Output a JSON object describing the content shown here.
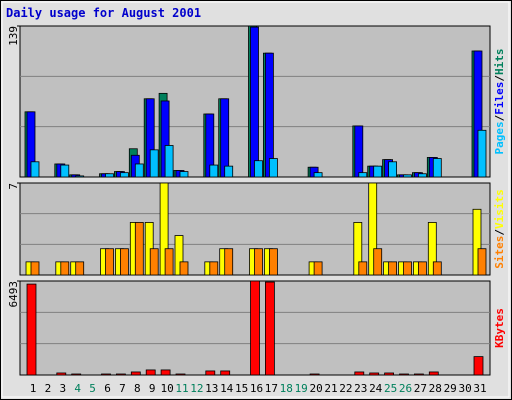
{
  "chart_data": [
    {
      "type": "bar",
      "title": "Daily usage for August 2001",
      "ylim": [
        0,
        139
      ],
      "yticks": [
        139
      ],
      "legend_separator": "/",
      "series": [
        {
          "name": "Pages",
          "color": "#00c0ff",
          "values": [
            14,
            0,
            11,
            1,
            0,
            3,
            4,
            12,
            25,
            29,
            5,
            0,
            11,
            10,
            0,
            15,
            17,
            0,
            0,
            4,
            0,
            0,
            4,
            10,
            14,
            2,
            3,
            17,
            0,
            0,
            43
          ]
        },
        {
          "name": "Files",
          "color": "#0000ff",
          "values": [
            60,
            0,
            12,
            2,
            0,
            3,
            5,
            20,
            72,
            70,
            6,
            0,
            58,
            72,
            0,
            138,
            114,
            0,
            0,
            9,
            0,
            0,
            47,
            10,
            16,
            2,
            4,
            18,
            0,
            0,
            116
          ]
        },
        {
          "name": "Hits",
          "color": "#00805c",
          "values": [
            60,
            0,
            12,
            2,
            0,
            3,
            5,
            26,
            72,
            77,
            6,
            0,
            58,
            72,
            0,
            139,
            114,
            0,
            0,
            9,
            0,
            0,
            47,
            10,
            16,
            2,
            4,
            18,
            0,
            0,
            116
          ]
        }
      ]
    },
    {
      "type": "bar",
      "ylim": [
        0,
        7
      ],
      "yticks": [
        7
      ],
      "legend_separator": "/",
      "series": [
        {
          "name": "Sites",
          "color": "#ff8000",
          "values": [
            1,
            0,
            1,
            1,
            0,
            2,
            2,
            4,
            2,
            2,
            1,
            0,
            1,
            2,
            0,
            2,
            2,
            0,
            0,
            1,
            0,
            0,
            1,
            2,
            1,
            1,
            1,
            1,
            0,
            0,
            2
          ]
        },
        {
          "name": "Visits",
          "color": "#ffff00",
          "values": [
            1,
            0,
            1,
            1,
            0,
            2,
            2,
            4,
            4,
            7,
            3,
            0,
            1,
            2,
            0,
            2,
            2,
            0,
            0,
            1,
            0,
            0,
            4,
            7,
            1,
            1,
            1,
            4,
            0,
            0,
            5
          ]
        }
      ]
    },
    {
      "type": "bar",
      "ylim": [
        0,
        6493
      ],
      "yticks": [
        6493
      ],
      "categories": [
        "1",
        "2",
        "3",
        "4",
        "5",
        "6",
        "7",
        "8",
        "9",
        "10",
        "11",
        "12",
        "13",
        "14",
        "15",
        "16",
        "17",
        "18",
        "19",
        "20",
        "21",
        "22",
        "23",
        "24",
        "25",
        "26",
        "27",
        "28",
        "29",
        "30",
        "31"
      ],
      "category_colors": [
        "#000",
        "#000",
        "#000",
        "#00805c",
        "#00805c",
        "#000",
        "#000",
        "#000",
        "#000",
        "#000",
        "#00805c",
        "#00805c",
        "#000",
        "#000",
        "#000",
        "#000",
        "#000",
        "#00805c",
        "#00805c",
        "#000",
        "#000",
        "#000",
        "#000",
        "#000",
        "#00805c",
        "#00805c",
        "#000",
        "#000",
        "#000",
        "#000",
        "#000"
      ],
      "series": [
        {
          "name": "KBytes",
          "color": "#ff0000",
          "values": [
            6280,
            0,
            140,
            70,
            0,
            70,
            70,
            210,
            350,
            350,
            70,
            0,
            280,
            280,
            0,
            6493,
            6420,
            0,
            0,
            70,
            0,
            0,
            210,
            140,
            140,
            70,
            70,
            210,
            0,
            0,
            1270
          ]
        }
      ]
    }
  ]
}
